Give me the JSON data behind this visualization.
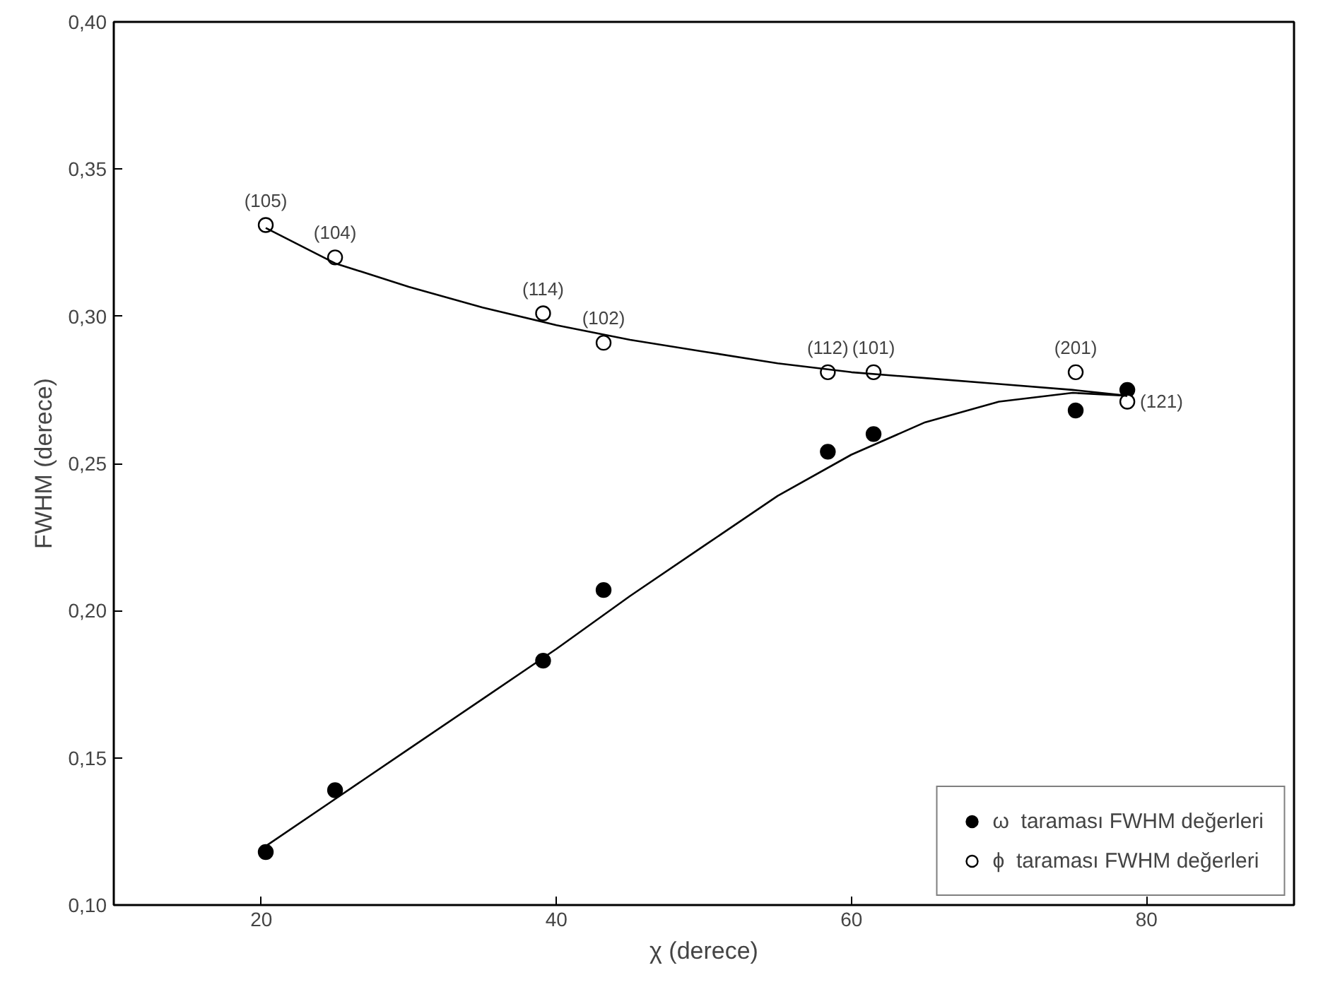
{
  "chart_data": {
    "type": "scatter",
    "xlabel": "χ (derece)",
    "ylabel": "FWHM (derece)",
    "xlim": [
      10,
      90
    ],
    "xticks": [
      20,
      40,
      60,
      80
    ],
    "ylim": [
      0.1,
      0.4
    ],
    "yticks": [
      {
        "value": 0.1,
        "label": "0,10"
      },
      {
        "value": 0.15,
        "label": "0,15"
      },
      {
        "value": 0.2,
        "label": "0,20"
      },
      {
        "value": 0.25,
        "label": "0,25"
      },
      {
        "value": 0.3,
        "label": "0,30"
      },
      {
        "value": 0.35,
        "label": "0,35"
      },
      {
        "value": 0.4,
        "label": "0,40"
      }
    ],
    "grid": false,
    "legend": "bottom right",
    "series": [
      {
        "name": "ω  taraması FWHM değerleri",
        "color": "#000000",
        "marker": "circle",
        "x": [
          20.3,
          25.0,
          39.1,
          43.2,
          58.4,
          61.5,
          75.2,
          78.7
        ],
        "values": [
          0.118,
          0.139,
          0.183,
          0.207,
          0.254,
          0.26,
          0.268,
          0.275
        ]
      },
      {
        "name": "ϕ  taraması FWHM değerleri",
        "color": "#ffffff",
        "marker": "circle",
        "x": [
          20.3,
          25.0,
          39.1,
          43.2,
          58.4,
          61.5,
          75.2,
          78.7
        ],
        "values": [
          0.331,
          0.32,
          0.301,
          0.291,
          0.281,
          0.281,
          0.281,
          0.271
        ]
      },
      {
        "type": "line",
        "color": "#000000",
        "x": [
          20.3,
          25,
          30,
          35,
          40,
          45,
          50,
          55,
          60,
          65,
          70,
          75,
          78.7
        ],
        "values": [
          0.12,
          0.136,
          0.153,
          0.17,
          0.187,
          0.205,
          0.222,
          0.239,
          0.253,
          0.264,
          0.271,
          0.274,
          0.273
        ]
      },
      {
        "type": "line",
        "color": "#000000",
        "x": [
          20.3,
          25,
          30,
          35,
          40,
          45,
          50,
          55,
          60,
          65,
          70,
          75,
          78.7
        ],
        "values": [
          0.33,
          0.318,
          0.31,
          0.303,
          0.297,
          0.292,
          0.288,
          0.284,
          0.281,
          0.279,
          0.277,
          0.275,
          0.273
        ]
      }
    ],
    "annotations": [
      {
        "text": "(105)",
        "x": 20.3,
        "y": 0.331
      },
      {
        "text": "(104)",
        "x": 25.0,
        "y": 0.32
      },
      {
        "text": "(114)",
        "x": 39.1,
        "y": 0.301
      },
      {
        "text": "(102)",
        "x": 43.2,
        "y": 0.291
      },
      {
        "text": "(112)",
        "x": 58.4,
        "y": 0.281
      },
      {
        "text": "(101)",
        "x": 61.5,
        "y": 0.281
      },
      {
        "text": "(201)",
        "x": 75.2,
        "y": 0.281
      },
      {
        "text": "(121)",
        "x": 78.7,
        "y": 0.271
      }
    ]
  }
}
